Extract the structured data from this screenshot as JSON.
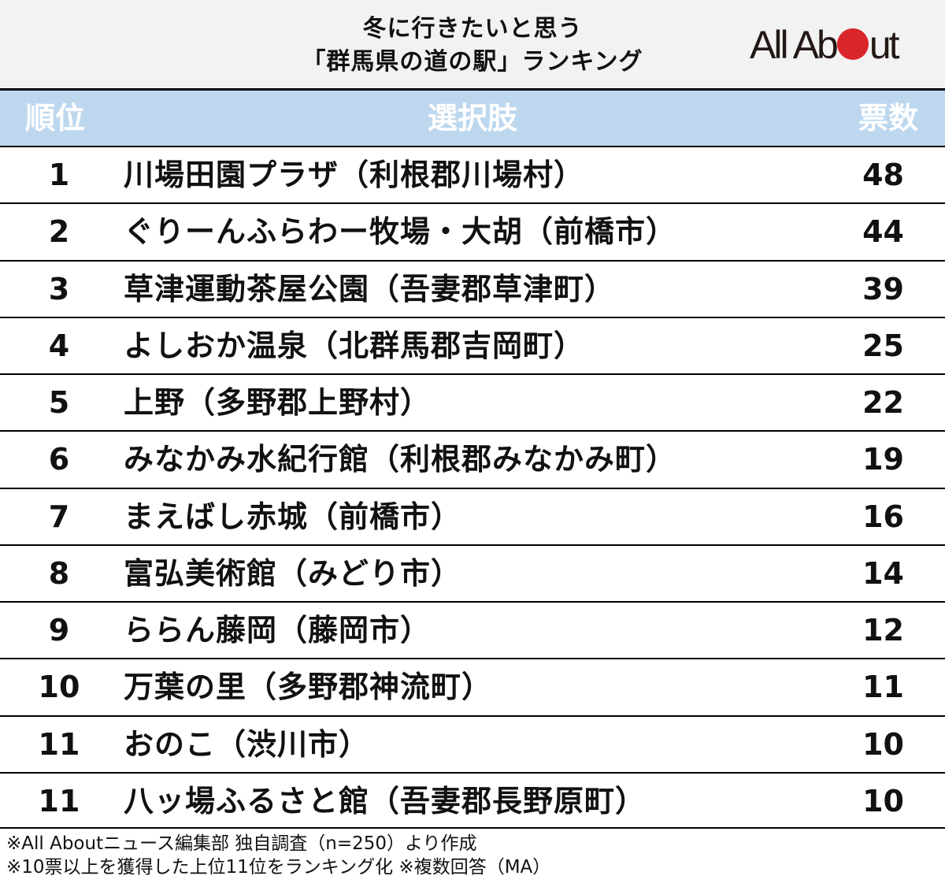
{
  "header": {
    "title_line1": "冬に行きたいと思う",
    "title_line2": "「群馬県の道の駅」ランキング",
    "logo": {
      "prefix": "All Ab",
      "suffix": "ut",
      "dot_color": "#d9262b"
    }
  },
  "columns": {
    "rank": "順位",
    "choice": "選択肢",
    "votes": "票数"
  },
  "rows": [
    {
      "rank": "1",
      "name": "川場田園プラザ（利根郡川場村）",
      "votes": "48"
    },
    {
      "rank": "2",
      "name": "ぐりーんふらわー牧場・大胡（前橋市）",
      "votes": "44"
    },
    {
      "rank": "3",
      "name": "草津運動茶屋公園（吾妻郡草津町）",
      "votes": "39"
    },
    {
      "rank": "4",
      "name": "よしおか温泉（北群馬郡吉岡町）",
      "votes": "25"
    },
    {
      "rank": "5",
      "name": "上野（多野郡上野村）",
      "votes": "22"
    },
    {
      "rank": "6",
      "name": "みなかみ水紀行館（利根郡みなかみ町）",
      "votes": "19"
    },
    {
      "rank": "7",
      "name": "まえばし赤城（前橋市）",
      "votes": "16"
    },
    {
      "rank": "8",
      "name": "富弘美術館（みどり市）",
      "votes": "14"
    },
    {
      "rank": "9",
      "name": "ららん藤岡（藤岡市）",
      "votes": "12"
    },
    {
      "rank": "10",
      "name": "万葉の里（多野郡神流町）",
      "votes": "11"
    },
    {
      "rank": "11",
      "name": "おのこ（渋川市）",
      "votes": "10"
    },
    {
      "rank": "11",
      "name": "八ッ場ふるさと館（吾妻郡長野原町）",
      "votes": "10"
    }
  ],
  "notes": {
    "line1": "※All Aboutニュース編集部 独自調査（n=250）より作成",
    "line2": "※10票以上を獲得した上位11位をランキング化 ※複数回答（MA）"
  },
  "colors": {
    "header_bg": "#f2f2f2",
    "column_header_bg": "#bdd7ee",
    "accent_red": "#d9262b"
  },
  "chart_data": {
    "type": "table",
    "title": "冬に行きたいと思う「群馬県の道の駅」ランキング",
    "columns": [
      "順位",
      "選択肢",
      "票数"
    ],
    "categories": [
      "川場田園プラザ（利根郡川場村）",
      "ぐりーんふらわー牧場・大胡（前橋市）",
      "草津運動茶屋公園（吾妻郡草津町）",
      "よしおか温泉（北群馬郡吉岡町）",
      "上野（多野郡上野村）",
      "みなかみ水紀行館（利根郡みなかみ町）",
      "まえばし赤城（前橋市）",
      "富弘美術館（みどり市）",
      "ららん藤岡（藤岡市）",
      "万葉の里（多野郡神流町）",
      "おのこ（渋川市）",
      "八ッ場ふるさと館（吾妻郡長野原町）"
    ],
    "ranks": [
      1,
      2,
      3,
      4,
      5,
      6,
      7,
      8,
      9,
      10,
      11,
      11
    ],
    "values": [
      48,
      44,
      39,
      25,
      22,
      19,
      16,
      14,
      12,
      11,
      10,
      10
    ],
    "ylabel": "票数"
  }
}
